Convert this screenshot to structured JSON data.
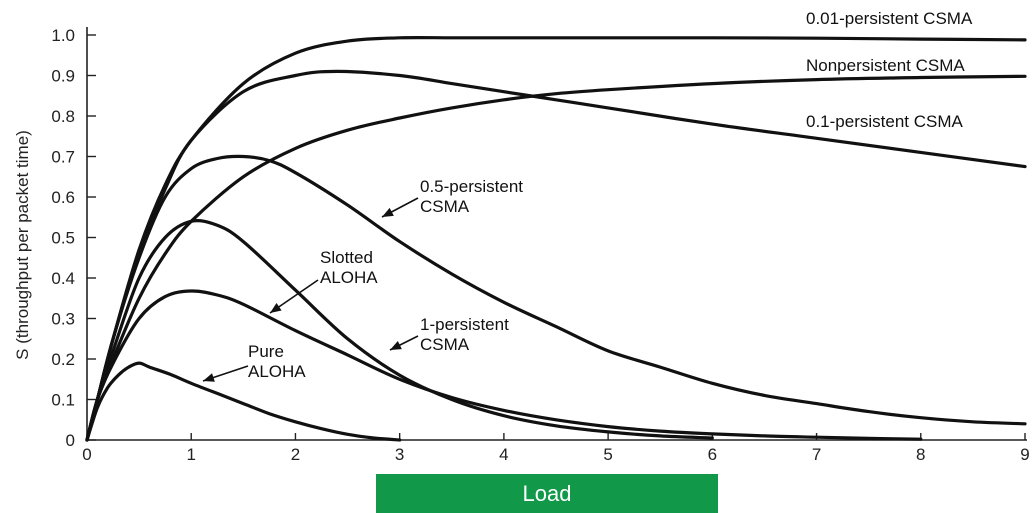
{
  "chart_data": {
    "type": "line",
    "title": "",
    "xlabel": "",
    "ylabel": "S (throughput per packet time)",
    "xlim": [
      0,
      9
    ],
    "ylim": [
      0,
      1.0
    ],
    "xticks": [
      "0",
      "1",
      "2",
      "3",
      "4",
      "5",
      "6",
      "7",
      "8",
      "9"
    ],
    "yticks": [
      "0",
      "0.1",
      "0.2",
      "0.3",
      "0.4",
      "0.5",
      "0.6",
      "0.7",
      "0.8",
      "0.9",
      "1.0"
    ],
    "grid": false,
    "series": [
      {
        "name": "Pure ALOHA",
        "label_lines": [
          "Pure",
          "ALOHA"
        ],
        "x": [
          0,
          0.1,
          0.2,
          0.3,
          0.4,
          0.5,
          0.6,
          0.8,
          1.0,
          1.25,
          1.5,
          1.75,
          2.0,
          2.25,
          2.5,
          2.75,
          3.0
        ],
        "y": [
          0,
          0.08,
          0.13,
          0.16,
          0.18,
          0.19,
          0.18,
          0.162,
          0.14,
          0.115,
          0.09,
          0.065,
          0.045,
          0.028,
          0.014,
          0.005,
          0.0
        ]
      },
      {
        "name": "Slotted ALOHA",
        "label_lines": [
          "Slotted",
          "ALOHA"
        ],
        "x": [
          0,
          0.1,
          0.25,
          0.5,
          0.75,
          1.0,
          1.25,
          1.5,
          2.0,
          2.5,
          3.0,
          3.5,
          4.0,
          4.5,
          5.0,
          5.5,
          6.0,
          6.5,
          7.0,
          7.5,
          8.0
        ],
        "y": [
          0,
          0.1,
          0.19,
          0.3,
          0.354,
          0.368,
          0.358,
          0.335,
          0.27,
          0.21,
          0.15,
          0.105,
          0.073,
          0.05,
          0.033,
          0.022,
          0.015,
          0.01,
          0.007,
          0.004,
          0.002
        ]
      },
      {
        "name": "1-persistent CSMA",
        "label_lines": [
          "1-persistent",
          "CSMA"
        ],
        "x": [
          0,
          0.1,
          0.25,
          0.5,
          0.75,
          1.0,
          1.25,
          1.5,
          2.0,
          2.5,
          3.0,
          3.5,
          4.0,
          4.5,
          5.0,
          5.5,
          6.0
        ],
        "y": [
          0,
          0.1,
          0.22,
          0.4,
          0.5,
          0.54,
          0.53,
          0.49,
          0.37,
          0.25,
          0.16,
          0.1,
          0.06,
          0.035,
          0.02,
          0.01,
          0.005
        ]
      },
      {
        "name": "0.5-persistent CSMA",
        "label_lines": [
          "0.5-persistent",
          "CSMA"
        ],
        "x": [
          0,
          0.1,
          0.25,
          0.5,
          0.75,
          1.0,
          1.25,
          1.5,
          1.75,
          2.0,
          2.5,
          3.0,
          3.5,
          4.0,
          4.5,
          5.0,
          5.5,
          6.0,
          6.5,
          7.0,
          7.5,
          8.0,
          8.5,
          9.0
        ],
        "y": [
          0,
          0.1,
          0.25,
          0.45,
          0.6,
          0.67,
          0.695,
          0.7,
          0.69,
          0.66,
          0.58,
          0.49,
          0.41,
          0.34,
          0.28,
          0.22,
          0.18,
          0.14,
          0.11,
          0.09,
          0.07,
          0.055,
          0.045,
          0.04
        ]
      },
      {
        "name": "Nonpersistent CSMA",
        "label_lines": [
          "Nonpersistent CSMA"
        ],
        "x": [
          0,
          0.1,
          0.25,
          0.5,
          0.75,
          1.0,
          1.5,
          2.0,
          2.5,
          3.0,
          3.5,
          4.0,
          4.5,
          5.0,
          6.0,
          7.0,
          8.0,
          9.0
        ],
        "y": [
          0,
          0.1,
          0.2,
          0.35,
          0.46,
          0.54,
          0.65,
          0.72,
          0.765,
          0.795,
          0.82,
          0.84,
          0.855,
          0.865,
          0.88,
          0.89,
          0.895,
          0.898
        ]
      },
      {
        "name": "0.1-persistent CSMA",
        "label_lines": [
          "0.1-persistent CSMA"
        ],
        "x": [
          0,
          0.1,
          0.25,
          0.5,
          0.75,
          1.0,
          1.5,
          2.0,
          2.4,
          3.0,
          3.5,
          4.0,
          4.5,
          5.0,
          6.0,
          7.0,
          8.0,
          9.0
        ],
        "y": [
          0,
          0.1,
          0.25,
          0.46,
          0.62,
          0.74,
          0.86,
          0.9,
          0.91,
          0.9,
          0.88,
          0.86,
          0.84,
          0.82,
          0.78,
          0.745,
          0.71,
          0.675
        ]
      },
      {
        "name": "0.01-persistent CSMA",
        "label_lines": [
          "0.01-persistent CSMA"
        ],
        "x": [
          0,
          0.1,
          0.25,
          0.5,
          0.75,
          1.0,
          1.5,
          2.0,
          2.5,
          3.0,
          3.5,
          4.0,
          5.0,
          6.0,
          7.0,
          8.0,
          9.0
        ],
        "y": [
          0,
          0.1,
          0.25,
          0.47,
          0.63,
          0.74,
          0.88,
          0.955,
          0.985,
          0.993,
          0.993,
          0.993,
          0.993,
          0.993,
          0.992,
          0.99,
          0.988
        ]
      }
    ]
  },
  "footer": {
    "load_label": "Load",
    "load_color": "#119848"
  }
}
